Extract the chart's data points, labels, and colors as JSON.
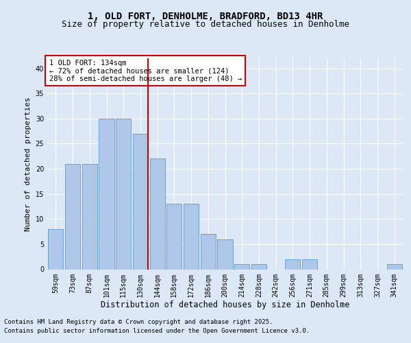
{
  "title": "1, OLD FORT, DENHOLME, BRADFORD, BD13 4HR",
  "subtitle": "Size of property relative to detached houses in Denholme",
  "xlabel": "Distribution of detached houses by size in Denholme",
  "ylabel": "Number of detached properties",
  "categories": [
    "59sqm",
    "73sqm",
    "87sqm",
    "101sqm",
    "115sqm",
    "130sqm",
    "144sqm",
    "158sqm",
    "172sqm",
    "186sqm",
    "200sqm",
    "214sqm",
    "228sqm",
    "242sqm",
    "256sqm",
    "271sqm",
    "285sqm",
    "299sqm",
    "313sqm",
    "327sqm",
    "341sqm"
  ],
  "values": [
    8,
    21,
    21,
    30,
    30,
    27,
    22,
    13,
    13,
    7,
    6,
    1,
    1,
    0,
    2,
    2,
    0,
    0,
    0,
    0,
    1
  ],
  "bar_color": "#aec6e8",
  "bar_edge_color": "#5b9bd5",
  "red_line_color": "#cc0000",
  "annotation_text": "1 OLD FORT: 134sqm\n← 72% of detached houses are smaller (124)\n28% of semi-detached houses are larger (48) →",
  "annotation_box_color": "#ffffff",
  "annotation_box_edge_color": "#cc0000",
  "ylim": [
    0,
    42
  ],
  "yticks": [
    0,
    5,
    10,
    15,
    20,
    25,
    30,
    35,
    40
  ],
  "background_color": "#dce8f5",
  "plot_background_color": "#dce8f5",
  "grid_color": "#ffffff",
  "footer_line1": "Contains HM Land Registry data © Crown copyright and database right 2025.",
  "footer_line2": "Contains public sector information licensed under the Open Government Licence v3.0.",
  "title_fontsize": 10,
  "subtitle_fontsize": 9,
  "xlabel_fontsize": 8.5,
  "ylabel_fontsize": 8,
  "tick_fontsize": 7,
  "annotation_fontsize": 7.5,
  "footer_fontsize": 6.5
}
